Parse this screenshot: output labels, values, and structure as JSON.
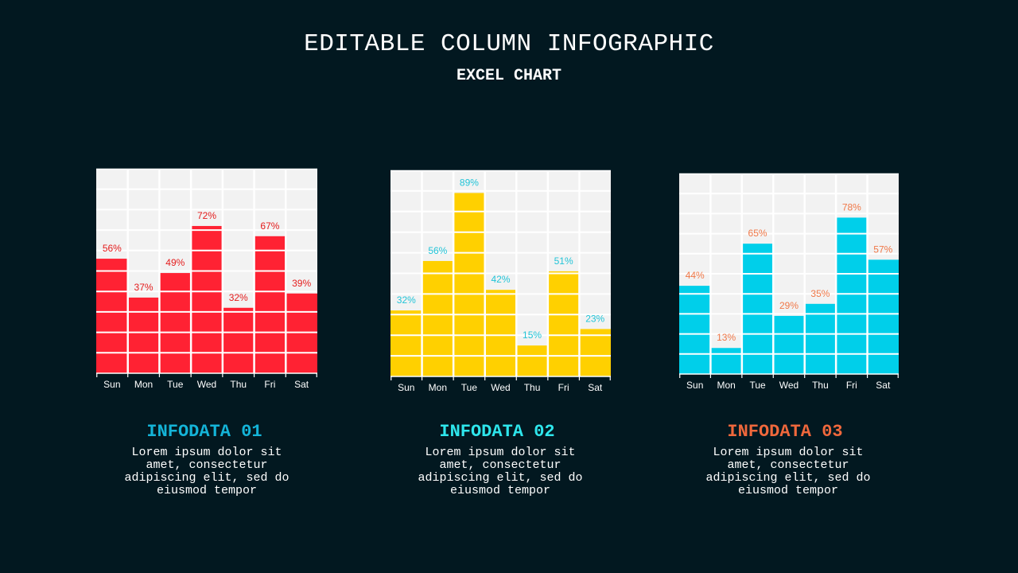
{
  "header": {
    "title": "EDITABLE COLUMN INFOGRAPHIC",
    "subtitle": "EXCEL CHART"
  },
  "panels": [
    {
      "heading": "INFODATA 01",
      "text": "Lorem ipsum dolor sit amet, consectetur adipiscing elit, sed do eiusmod tempor",
      "heading_color": "#14b4d8"
    },
    {
      "heading": "INFODATA 02",
      "text": "Lorem ipsum dolor sit amet, consectetur adipiscing elit, sed do eiusmod tempor",
      "heading_color": "#2ee6ec"
    },
    {
      "heading": "INFODATA 03",
      "text": "Lorem ipsum dolor sit amet, consectetur adipiscing elit, sed do eiusmod tempor",
      "heading_color": "#f0683c"
    }
  ],
  "colors": {
    "background": "#021820",
    "plot_background": "#f2f2f2",
    "gridline": "#ffffff",
    "tick_label": "#ffffff"
  },
  "chart_data": [
    {
      "type": "bar",
      "categories": [
        "Sun",
        "Mon",
        "Tue",
        "Wed",
        "Thu",
        "Fri",
        "Sat"
      ],
      "values": [
        56,
        37,
        49,
        72,
        32,
        67,
        39
      ],
      "data_labels": [
        "56%",
        "37%",
        "49%",
        "72%",
        "32%",
        "67%",
        "39%"
      ],
      "ylim": [
        0,
        100
      ],
      "grid": true,
      "bar_color": "#ff2233",
      "label_color": "#e41c1c"
    },
    {
      "type": "bar",
      "categories": [
        "Sun",
        "Mon",
        "Tue",
        "Wed",
        "Thu",
        "Fri",
        "Sat"
      ],
      "values": [
        32,
        56,
        89,
        42,
        15,
        51,
        23
      ],
      "data_labels": [
        "32%",
        "56%",
        "89%",
        "42%",
        "15%",
        "51%",
        "23%"
      ],
      "ylim": [
        0,
        100
      ],
      "grid": true,
      "bar_color": "#ffd000",
      "label_color": "#22c4d8"
    },
    {
      "type": "bar",
      "categories": [
        "Sun",
        "Mon",
        "Tue",
        "Wed",
        "Thu",
        "Fri",
        "Sat"
      ],
      "values": [
        44,
        13,
        65,
        29,
        35,
        78,
        57
      ],
      "data_labels": [
        "44%",
        "13%",
        "65%",
        "29%",
        "35%",
        "78%",
        "57%"
      ],
      "ylim": [
        0,
        100
      ],
      "grid": true,
      "bar_color": "#00cfea",
      "label_color": "#f07848"
    }
  ]
}
